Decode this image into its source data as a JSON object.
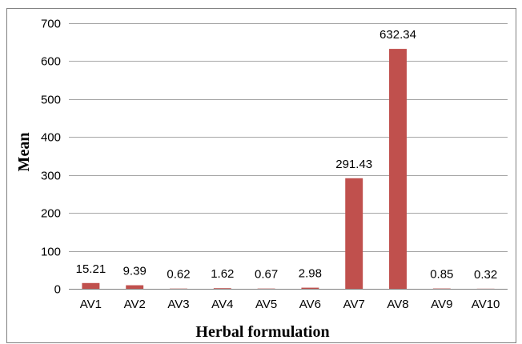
{
  "chart_data": {
    "type": "bar",
    "categories": [
      "AV1",
      "AV2",
      "AV3",
      "AV4",
      "AV5",
      "AV6",
      "AV7",
      "AV8",
      "AV9",
      "AV10"
    ],
    "values": [
      15.21,
      9.39,
      0.62,
      1.62,
      0.67,
      2.98,
      291.43,
      632.34,
      0.85,
      0.32
    ],
    "data_labels": [
      "15.21",
      "9.39",
      "0.62",
      "1.62",
      "0.67",
      "2.98",
      "291.43",
      "632.34",
      "0.85",
      "0.32"
    ],
    "title": "",
    "xlabel": "Herbal formulation",
    "ylabel": "Mean",
    "ylim": [
      0,
      700
    ],
    "yticks": [
      0,
      100,
      200,
      300,
      400,
      500,
      600,
      700
    ],
    "grid": true,
    "legend": "none",
    "bar_color": "#c0504d"
  }
}
